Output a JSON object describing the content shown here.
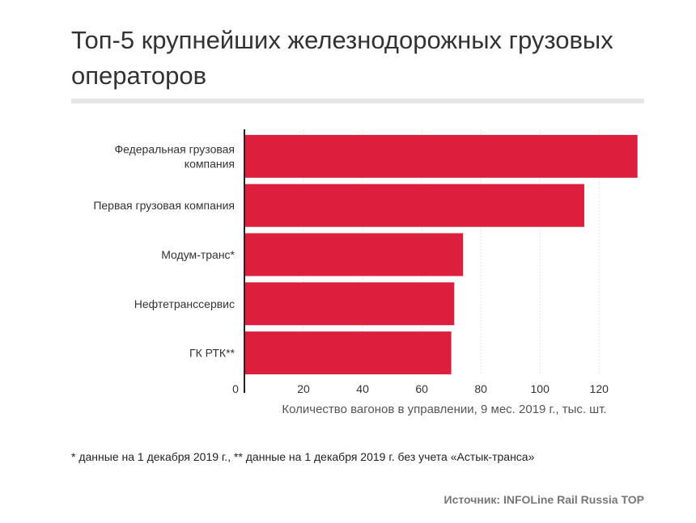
{
  "header": {
    "title": "Топ-5 крупнейших железнодорожных грузовых операторов"
  },
  "chart_data": {
    "type": "bar",
    "orientation": "horizontal",
    "categories": [
      [
        "Федеральная грузовая",
        "компания"
      ],
      [
        "Первая грузовая компания"
      ],
      [
        "Модум-транс*"
      ],
      [
        "Нефтетранссервис"
      ],
      [
        "ГК РТК**"
      ]
    ],
    "values": [
      133,
      115,
      74,
      71,
      70
    ],
    "xlabel": "Количество вагонов в управлении, 9 мес. 2019 г., тыс. шт.",
    "ylabel": "",
    "xlim": [
      0,
      135
    ],
    "xticks": [
      "0",
      "20",
      "40",
      "60",
      "80",
      "100",
      "120"
    ],
    "xtick_values": [
      0,
      20,
      40,
      60,
      80,
      100,
      120
    ],
    "bar_color": "#dc1f3c",
    "grid": "vertical"
  },
  "footnote": "* данные на 1 декабря 2019 г., ** данные на 1 декабря 2019 г. без учета «Астык-транса»",
  "source": "Источник: INFOLine Rail Russia TOP"
}
